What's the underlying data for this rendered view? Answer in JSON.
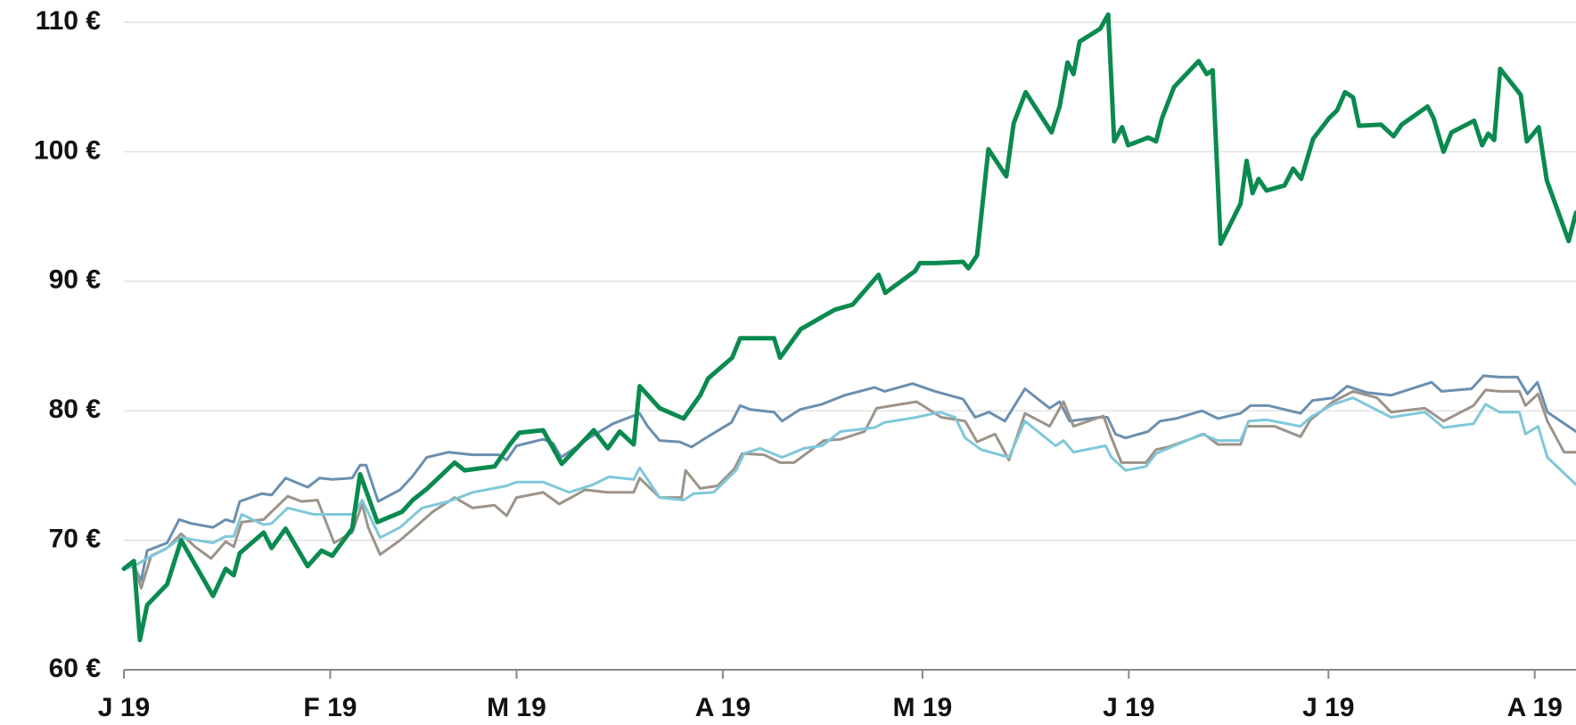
{
  "chart_data": {
    "type": "line",
    "xlim": [
      0,
      218.2
    ],
    "xticks": [
      {
        "value": 0,
        "label": "J 19"
      },
      {
        "value": 31,
        "label": "F 19"
      },
      {
        "value": 59,
        "label": "M 19"
      },
      {
        "value": 90,
        "label": "A 19"
      },
      {
        "value": 120,
        "label": "M 19"
      },
      {
        "value": 151,
        "label": "J 19"
      },
      {
        "value": 181,
        "label": "J 19"
      },
      {
        "value": 212,
        "label": "A 19"
      }
    ],
    "ylim": [
      60,
      110
    ],
    "yticks": [
      {
        "value": 60,
        "label": "60 €"
      },
      {
        "value": 70,
        "label": "70 €"
      },
      {
        "value": 80,
        "label": "80 €"
      },
      {
        "value": 90,
        "label": "90 €"
      },
      {
        "value": 100,
        "label": "100 €"
      },
      {
        "value": 110,
        "label": "110 €"
      }
    ],
    "grid": true,
    "series": [
      {
        "color": "#6a8fb0",
        "width": 3,
        "x": [
          0,
          1.5,
          2.6,
          3.5,
          6.5,
          8.3,
          10.1,
          13.4,
          15.3,
          16.5,
          17.4,
          20.7,
          22.2,
          24.3,
          27.6,
          29.4,
          31.3,
          34.3,
          35.5,
          36.4,
          38.2,
          41.5,
          43.3,
          45.5,
          48.8,
          52.4,
          56.3,
          57.5,
          59,
          63,
          64.5,
          65.7,
          70.2,
          73.5,
          77.5,
          78.7,
          80.5,
          83.5,
          85.3,
          87.1,
          91.3,
          92.6,
          94.1,
          97.7,
          98.9,
          101.6,
          104.9,
          108.3,
          112.8,
          114.3,
          118.5,
          121.9,
          126.1,
          127.9,
          130,
          132.4,
          135.4,
          139.1,
          140.6,
          142.1,
          146.6,
          147.8,
          149,
          150.5,
          153.9,
          155.7,
          158.1,
          162,
          164.4,
          167.8,
          169.3,
          172,
          176.8,
          178.6,
          181.7,
          183.8,
          186.8,
          190.4,
          196.5,
          198,
          202.5,
          204.3,
          206.7,
          209.4,
          210.9,
          212.4,
          213.9,
          218.2
        ],
        "values": [
          67.8,
          68,
          66.9,
          69.2,
          69.8,
          71.6,
          71.3,
          71,
          71.6,
          71.4,
          73,
          73.6,
          73.5,
          74.8,
          74.1,
          74.8,
          74.7,
          74.8,
          75.8,
          75.8,
          73,
          73.9,
          74.9,
          76.4,
          76.8,
          76.6,
          76.6,
          76.2,
          77.3,
          77.8,
          77.5,
          76.4,
          78,
          79,
          79.8,
          78.8,
          77.7,
          77.6,
          77.2,
          77.8,
          79.1,
          80.4,
          80.1,
          79.9,
          79.2,
          80.1,
          80.5,
          81.2,
          81.8,
          81.5,
          82.1,
          81.5,
          80.9,
          79.5,
          79.9,
          79.2,
          81.7,
          80.2,
          80.7,
          79.2,
          79.5,
          79.5,
          78.2,
          77.9,
          78.4,
          79.2,
          79.4,
          80,
          79.4,
          79.8,
          80.4,
          80.4,
          79.8,
          80.8,
          81,
          81.9,
          81.4,
          81.2,
          82.2,
          81.5,
          81.7,
          82.7,
          82.6,
          82.6,
          81.3,
          82.2,
          79.9,
          78.4
        ]
      },
      {
        "color": "#9c938a",
        "width": 3,
        "x": [
          0,
          1.5,
          2.6,
          4.1,
          6.5,
          8.6,
          10.7,
          13.1,
          15.3,
          16.5,
          17.7,
          21,
          22.2,
          24.6,
          26.7,
          29.1,
          31.6,
          34.3,
          35.8,
          36.7,
          38.5,
          41.5,
          43.3,
          46.4,
          49.7,
          52.4,
          55.7,
          57.5,
          59,
          63,
          65.4,
          69.3,
          72.6,
          76.6,
          77.5,
          80.5,
          83.8,
          84.4,
          86.6,
          89.2,
          91.7,
          92.9,
          96.2,
          98.6,
          100.7,
          105.2,
          107.7,
          111.3,
          113.1,
          115.5,
          119.1,
          122.8,
          126.4,
          128.2,
          130.9,
          133,
          135.4,
          139.1,
          141.2,
          142.7,
          147.2,
          148.4,
          149.9,
          153.6,
          155.1,
          156.9,
          162.3,
          164.4,
          167.8,
          168.7,
          172.9,
          176.8,
          178.3,
          181.7,
          184.7,
          188.3,
          190.4,
          195.5,
          198.3,
          202.8,
          204.6,
          206.7,
          209.7,
          210.6,
          212.5,
          213.9,
          216.4,
          218.2
        ],
        "values": [
          67.8,
          68.3,
          66.3,
          68.8,
          69.4,
          70.5,
          69.5,
          68.6,
          69.9,
          69.5,
          71.4,
          71.6,
          72.2,
          73.4,
          73,
          73.1,
          69.8,
          70.6,
          72.8,
          71,
          68.9,
          70,
          70.8,
          72.2,
          73.3,
          72.5,
          72.7,
          71.9,
          73.3,
          73.7,
          72.8,
          73.9,
          73.7,
          73.7,
          74.8,
          73.3,
          73.3,
          75.4,
          74,
          74.2,
          75.5,
          76.7,
          76.6,
          76,
          76,
          77.7,
          77.8,
          78.4,
          80.2,
          80.4,
          80.7,
          79.5,
          79.2,
          77.6,
          78.2,
          76.2,
          79.8,
          78.8,
          80.7,
          78.8,
          79.6,
          77.9,
          76,
          76,
          77,
          77.2,
          78.2,
          77.4,
          77.4,
          78.8,
          78.8,
          78,
          79.3,
          80.7,
          81.5,
          81,
          79.9,
          80.2,
          79.2,
          80.4,
          81.6,
          81.5,
          81.5,
          80.4,
          81.3,
          79.2,
          76.8,
          76.8
        ]
      },
      {
        "color": "#7fc8d9",
        "width": 3,
        "x": [
          0,
          1.5,
          3.5,
          6.5,
          8.6,
          13.4,
          15.3,
          16.5,
          17.7,
          21,
          22.2,
          24.6,
          28.5,
          32.8,
          34.6,
          35.8,
          38.5,
          41.5,
          44.8,
          48.8,
          52.4,
          57.5,
          59,
          63,
          66.9,
          70.5,
          72.9,
          76.6,
          77.5,
          80.5,
          84.1,
          85.6,
          88.6,
          92,
          93.2,
          95.6,
          98.9,
          102.2,
          104.9,
          107.7,
          112.8,
          114.3,
          119.1,
          122.6,
          124.9,
          126.4,
          128.8,
          133,
          135.4,
          140,
          141.2,
          142.7,
          147.5,
          148.4,
          150.5,
          153.6,
          155.1,
          162,
          164.4,
          167.8,
          169,
          171.7,
          176.8,
          178.3,
          181.7,
          184.7,
          190.4,
          195.5,
          198.3,
          202.8,
          204.6,
          206.7,
          209.7,
          210.6,
          212.5,
          213.9,
          218.2
        ],
        "values": [
          67.8,
          68,
          68.6,
          69.4,
          70.2,
          69.8,
          70.3,
          70.3,
          72,
          71.2,
          71.3,
          72.5,
          72,
          72,
          72,
          73.1,
          70.2,
          71,
          72.5,
          73,
          73.7,
          74.2,
          74.5,
          74.5,
          73.7,
          74.3,
          74.9,
          74.7,
          75.6,
          73.3,
          73.1,
          73.6,
          73.7,
          75.4,
          76.7,
          77.1,
          76.4,
          77.1,
          77.3,
          78.4,
          78.7,
          79.1,
          79.5,
          79.9,
          79.5,
          77.9,
          77,
          76.4,
          79.2,
          77.3,
          77.7,
          76.8,
          77.3,
          76.4,
          75.4,
          75.7,
          76.7,
          78.2,
          77.7,
          77.7,
          79.2,
          79.3,
          78.8,
          79.5,
          80.5,
          81,
          79.5,
          79.9,
          78.7,
          79,
          80.5,
          79.9,
          79.9,
          78.2,
          78.8,
          76.4,
          74.3
        ]
      },
      {
        "color": "#0a8a4f",
        "width": 5,
        "x": [
          0,
          1.5,
          2.4,
          3.5,
          6.5,
          8.6,
          13.4,
          15.3,
          16.5,
          17.4,
          21,
          22.2,
          24.3,
          27.6,
          29.7,
          31.3,
          34.3,
          35.5,
          38.1,
          41.8,
          43.4,
          45.6,
          49.7,
          51.2,
          55.7,
          58,
          59.4,
          63,
          65.8,
          70.6,
          72.7,
          74.5,
          76.6,
          77.5,
          80.5,
          84.1,
          86.6,
          87.8,
          91.4,
          92.6,
          97.7,
          98.6,
          101.7,
          106.8,
          109.5,
          113.4,
          114.4,
          118.9,
          119.6,
          121.9,
          126.1,
          126.9,
          128.2,
          129.9,
          132.6,
          133.7,
          135.5,
          139.4,
          140.6,
          141.8,
          142.7,
          143.6,
          146.7,
          147.9,
          148.8,
          150,
          150.9,
          153.9,
          155.1,
          156,
          157.8,
          161.5,
          162.7,
          163.6,
          164.8,
          167.8,
          168.7,
          169.6,
          170.5,
          171.7,
          174.4,
          175.7,
          176.9,
          178.7,
          181.1,
          182.3,
          183.5,
          184.7,
          185.6,
          188.9,
          190.8,
          192,
          195.9,
          196.8,
          198.3,
          199.5,
          202.9,
          204.1,
          205,
          205.9,
          206.8,
          209.9,
          210.8,
          212.6,
          213.8,
          217.1,
          218.2
        ],
        "values": [
          67.8,
          68.4,
          62.3,
          65,
          66.6,
          70,
          65.7,
          67.8,
          67.3,
          69,
          70.6,
          69.4,
          70.9,
          68,
          69.2,
          68.8,
          70.9,
          75.1,
          71.4,
          72.2,
          73.1,
          74,
          76,
          75.4,
          75.7,
          77.4,
          78.3,
          78.5,
          75.9,
          78.5,
          77.1,
          78.4,
          77.4,
          81.9,
          80.2,
          79.4,
          81.2,
          82.5,
          84.1,
          85.6,
          85.6,
          84.1,
          86.3,
          87.8,
          88.2,
          90.5,
          89.1,
          90.8,
          91.4,
          91.4,
          91.5,
          91,
          92,
          100.2,
          98.1,
          102.2,
          104.6,
          101.5,
          103.5,
          106.9,
          106,
          108.5,
          109.5,
          110.6,
          100.8,
          101.9,
          100.5,
          101.1,
          100.8,
          102.6,
          105,
          107,
          106,
          106.3,
          92.9,
          96,
          99.3,
          96.8,
          97.9,
          97,
          97.4,
          98.7,
          97.9,
          101,
          102.6,
          103.2,
          104.6,
          104.2,
          102,
          102.1,
          101.2,
          102.1,
          103.5,
          102.6,
          100,
          101.5,
          102.4,
          100.5,
          101.4,
          100.9,
          106.4,
          104.4,
          100.8,
          101.9,
          97.8,
          93.1,
          95.3
        ]
      }
    ]
  }
}
